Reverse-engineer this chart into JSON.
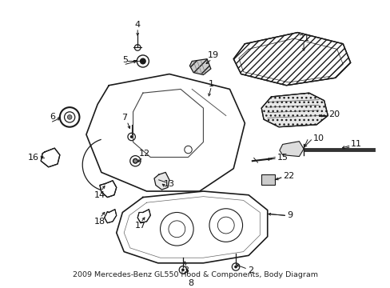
{
  "title": "2009 Mercedes-Benz GL550 Hood & Components, Body Diagram",
  "bg_color": "#ffffff",
  "line_color": "#1a1a1a",
  "label_color": "#111111",
  "label_fontsize": 8.0,
  "title_fontsize": 6.8,
  "figsize": [
    4.89,
    3.6
  ],
  "dpi": 100
}
